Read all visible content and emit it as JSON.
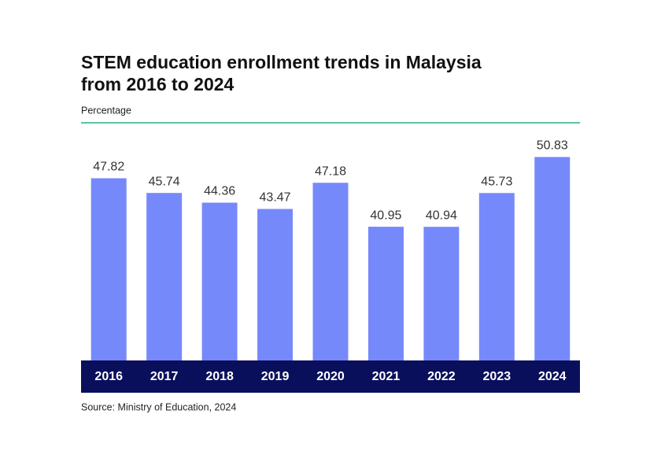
{
  "chart_data": {
    "type": "bar",
    "title_lines": [
      "STEM education enrollment trends in Malaysia",
      "from 2016 to 2024"
    ],
    "subtitle": "Percentage",
    "source": "Source: Ministry of Education, 2024",
    "categories": [
      "2016",
      "2017",
      "2018",
      "2019",
      "2020",
      "2021",
      "2022",
      "2023",
      "2024"
    ],
    "values": [
      47.82,
      45.74,
      44.36,
      43.47,
      47.18,
      40.95,
      40.94,
      45.73,
      50.83
    ],
    "color": "#7689fb",
    "ylim": [
      22,
      51
    ]
  }
}
